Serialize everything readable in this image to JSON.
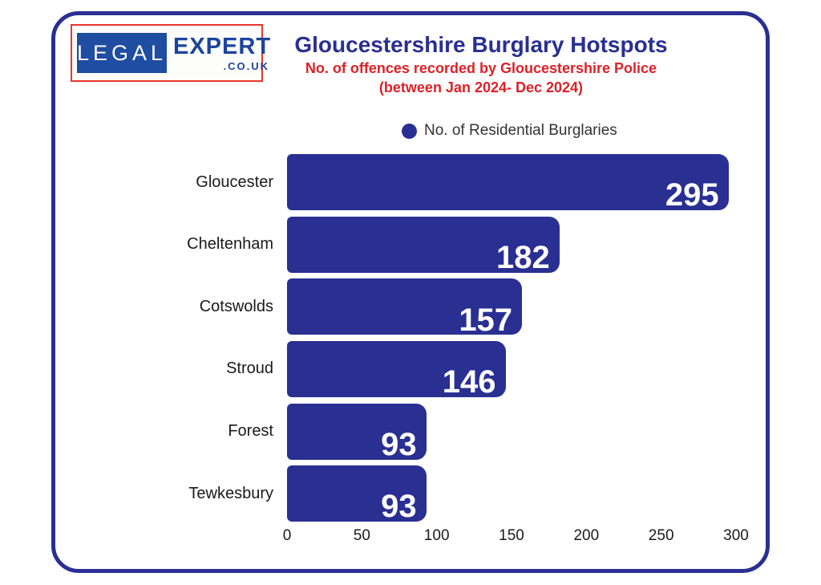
{
  "logo": {
    "legal": "LEGAL",
    "expert": "EXPERT",
    "domain": ".CO.UK"
  },
  "header": {
    "title": "Gloucestershire Burglary Hotspots",
    "subtitle_line1": "No. of offences recorded by Gloucestershire Police",
    "subtitle_line2": "(between Jan 2024- Dec 2024)"
  },
  "legend": {
    "label": "No. of Residential Burglaries"
  },
  "chart_data": {
    "type": "bar",
    "orientation": "horizontal",
    "title": "Gloucestershire Burglary Hotspots",
    "subtitle": "No. of offences recorded by Gloucestershire Police (between Jan 2024- Dec 2024)",
    "series_label": "No. of Residential Burglaries",
    "categories": [
      "Gloucester",
      "Cheltenham",
      "Cotswolds",
      "Stroud",
      "Forest",
      "Tewkesbury"
    ],
    "values": [
      295,
      182,
      157,
      146,
      93,
      93
    ],
    "xlim": [
      0,
      300
    ],
    "x_ticks": [
      0,
      50,
      100,
      150,
      200,
      250,
      300
    ],
    "grid": false,
    "legend_position": "top-center",
    "value_labels": "inside-end"
  },
  "colors": {
    "navy": "#2A2F92",
    "red": "#DF2026",
    "logo_red": "#EA362D",
    "logo_blue": "#1E4DA1",
    "logo_text_blue": "#1C449B",
    "bar": "#2A2F92",
    "value_label": "#FFFFFF",
    "background": "#FFFFFF"
  }
}
